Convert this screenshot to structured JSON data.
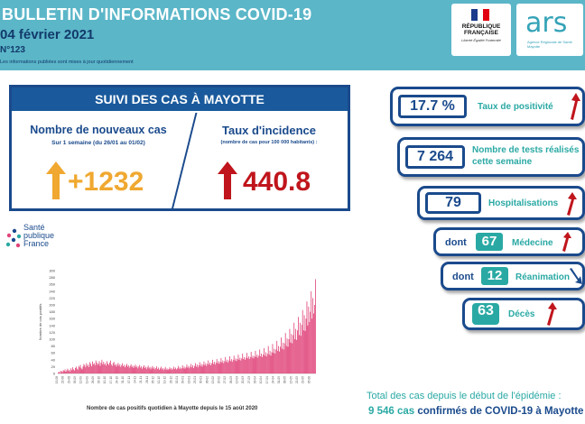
{
  "header": {
    "title": "BULLETIN D'INFORMATIONS COVID-19",
    "date": "04 février 2021",
    "number": "N°123",
    "note": "Les informations publiées sont mises à jour quotidiennement",
    "logo_rf_line1": "RÉPUBLIQUE",
    "logo_rf_line2": "FRANÇAISE",
    "logo_rf_motto": "Liberté Égalité Fraternité",
    "logo_ars": "ars",
    "logo_ars_sub": "Agence Régionale de Santé Mayotte"
  },
  "suivi": {
    "title": "SUIVI DES CAS À MAYOTTE",
    "new_cases_label": "Nombre de nouveaux cas",
    "new_cases_sub": "Sur 1 semaine (du 26/01 au 01/02)",
    "new_cases_value": "+1232",
    "incidence_label": "Taux d'incidence",
    "incidence_sub": "(nombre de cas pour 100 000 habitants) :",
    "incidence_value": "440.8"
  },
  "indicators": {
    "positivity_value": "17.7 %",
    "positivity_label": "Taux de positivité",
    "tests_value": "7 264",
    "tests_label_1": "Nombre de tests réalisés",
    "tests_label_2": "cette semaine",
    "hosp_value": "79",
    "hosp_label": "Hospitalisations",
    "dont": "dont",
    "med_value": "67",
    "med_label": "Médecine",
    "rea_value": "12",
    "rea_label": "Réanimation",
    "deaths_value": "63",
    "deaths_label": "Décès"
  },
  "spf_logo": [
    "Santé",
    "publique",
    "France"
  ],
  "chart_caption": "Nombre de cas positifs quotidien à Mayotte depuis le 15 août 2020",
  "totals": {
    "line1": "Total des cas depuis le début de l'épidémie :",
    "number": "9 546 cas",
    "rest": "confirmés de COVID-19 à Mayotte"
  },
  "colors": {
    "header_bg": "#5bb6c8",
    "navy": "#1a4a8c",
    "teal": "#2aa9a4",
    "up_red": "#c0151c",
    "up_orange": "#f0a830",
    "bar": "#e0447a"
  },
  "icons": {
    "new_cases_trend": "arrow-up-orange-icon",
    "incidence_trend": "arrow-up-red-icon",
    "positivity_trend": "arrow-up-red-icon",
    "hosp_trend": "arrow-up-red-icon",
    "med_trend": "arrow-up-red-icon",
    "rea_trend": "arrow-down-navy-icon",
    "deaths_trend": "arrow-up-red-icon"
  },
  "chart_data": {
    "type": "bar",
    "title": "",
    "xlabel": "",
    "ylabel": "Nombre de cas positifs",
    "ylim": [
      0,
      300
    ],
    "y_ticks": [
      0,
      20,
      40,
      60,
      80,
      100,
      120,
      140,
      160,
      180,
      200,
      220,
      240,
      260,
      280,
      300
    ],
    "x_start": "2020-08-15",
    "values": [
      3,
      5,
      2,
      8,
      6,
      4,
      10,
      7,
      12,
      5,
      9,
      14,
      8,
      11,
      6,
      15,
      10,
      18,
      12,
      9,
      16,
      20,
      14,
      11,
      22,
      18,
      25,
      15,
      12,
      20,
      28,
      24,
      18,
      30,
      22,
      26,
      19,
      33,
      28,
      21,
      35,
      27,
      30,
      24,
      38,
      32,
      25,
      29,
      36,
      22,
      31,
      40,
      27,
      34,
      26,
      30,
      23,
      36,
      29,
      25,
      32,
      38,
      26,
      22,
      30,
      34,
      24,
      28,
      20,
      26,
      31,
      22,
      27,
      19,
      24,
      30,
      21,
      25,
      18,
      23,
      28,
      20,
      24,
      17,
      22,
      27,
      19,
      23,
      16,
      21,
      26,
      18,
      22,
      15,
      20,
      25,
      17,
      21,
      14,
      19,
      24,
      16,
      20,
      13,
      18,
      23,
      15,
      19,
      12,
      17,
      22,
      14,
      18,
      12,
      16,
      21,
      13,
      17,
      11,
      15,
      20,
      12,
      16,
      10,
      14,
      19,
      11,
      15,
      10,
      13,
      18,
      12,
      16,
      11,
      14,
      20,
      13,
      17,
      12,
      15,
      22,
      14,
      18,
      13,
      16,
      24,
      15,
      20,
      14,
      18,
      26,
      17,
      22,
      15,
      20,
      28,
      18,
      24,
      16,
      22,
      30,
      20,
      26,
      18,
      24,
      33,
      22,
      28,
      20,
      26,
      35,
      24,
      30,
      22,
      28,
      38,
      26,
      32,
      24,
      30,
      40,
      28,
      34,
      26,
      32,
      42,
      30,
      36,
      28,
      34,
      45,
      32,
      38,
      30,
      36,
      48,
      34,
      40,
      32,
      38,
      50,
      36,
      42,
      34,
      40,
      52,
      38,
      44,
      36,
      42,
      55,
      40,
      46,
      38,
      44,
      58,
      42,
      48,
      40,
      46,
      60,
      44,
      50,
      42,
      48,
      63,
      46,
      52,
      44,
      50,
      66,
      48,
      55,
      46,
      52,
      70,
      50,
      58,
      48,
      55,
      74,
      52,
      62,
      50,
      58,
      80,
      55,
      66,
      52,
      62,
      86,
      60,
      72,
      58,
      70,
      95,
      66,
      80,
      64,
      78,
      105,
      72,
      90,
      70,
      88,
      118,
      80,
      102,
      78,
      100,
      130,
      90,
      115,
      88,
      112,
      148,
      100,
      130,
      98,
      126,
      165,
      112,
      148,
      110,
      142,
      185,
      126,
      170,
      124,
      160,
      210,
      140,
      195,
      150,
      180,
      240,
      160,
      220,
      175,
      200,
      275
    ]
  }
}
